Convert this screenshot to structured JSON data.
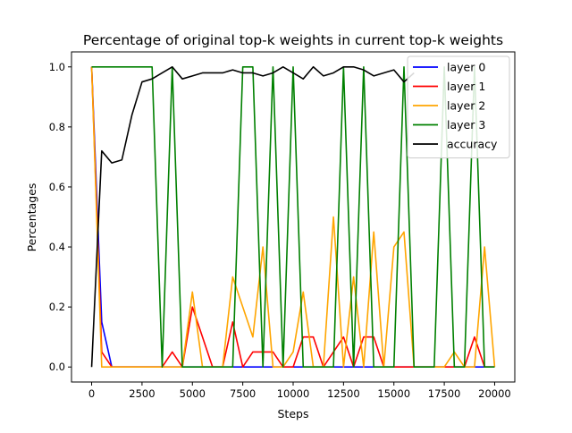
{
  "chart_data": {
    "type": "line",
    "title": "Percentage of original top-k weights in current top-k weights",
    "xlabel": "Steps",
    "ylabel": "Percentages",
    "xlim": [
      -1000,
      21000
    ],
    "ylim": [
      -0.05,
      1.05
    ],
    "xticks": [
      0,
      2500,
      5000,
      7500,
      10000,
      12500,
      15000,
      17500,
      20000
    ],
    "xtick_labels": [
      "0",
      "2500",
      "5000",
      "7500",
      "10000",
      "12500",
      "15000",
      "17500",
      "20000"
    ],
    "yticks": [
      0.0,
      0.2,
      0.4,
      0.6,
      0.8,
      1.0
    ],
    "ytick_labels": [
      "0.0",
      "0.2",
      "0.4",
      "0.6",
      "0.8",
      "1.0"
    ],
    "grid": false,
    "legend_position": "top-right",
    "series": [
      {
        "name": "layer 0",
        "color": "#0000ff",
        "x": [
          0,
          500,
          1000,
          1500,
          2000,
          2500,
          3000,
          3500,
          4000,
          4500,
          5000,
          5500,
          6000,
          6500,
          7000,
          7500,
          8000,
          8500,
          9000,
          9500,
          10000,
          10500,
          11000,
          11500,
          12000,
          12500,
          13000,
          13500,
          14000,
          14500,
          15000,
          15500,
          16000,
          16500,
          17000,
          17500,
          18000,
          18500,
          19000,
          19500,
          20000
        ],
        "y": [
          1.0,
          0.15,
          0,
          0,
          0,
          0,
          0,
          0,
          0,
          0,
          0,
          0,
          0,
          0,
          0,
          0,
          0,
          0,
          0,
          0,
          0,
          0,
          0,
          0,
          0,
          0,
          0,
          0,
          0,
          0,
          0,
          0,
          0,
          0,
          0,
          0,
          0,
          0,
          0,
          0,
          0
        ]
      },
      {
        "name": "layer 1",
        "color": "#ff0000",
        "x": [
          0,
          500,
          1000,
          1500,
          2000,
          2500,
          3000,
          3500,
          4000,
          4500,
          5000,
          5500,
          6000,
          6500,
          7000,
          7500,
          8000,
          8500,
          9000,
          9500,
          10000,
          10500,
          11000,
          11500,
          12000,
          12500,
          13000,
          13500,
          14000,
          14500,
          15000,
          15500,
          16000,
          16500,
          17000,
          17500,
          18000,
          18500,
          19000,
          19500,
          20000
        ],
        "y": [
          1.0,
          0.05,
          0,
          0,
          0,
          0,
          0,
          0,
          0.05,
          0,
          0.2,
          0.1,
          0,
          0,
          0.15,
          0,
          0.05,
          0.05,
          0.05,
          0,
          0,
          0.1,
          0.1,
          0,
          0.05,
          0.1,
          0,
          0.1,
          0.1,
          0,
          0,
          0,
          0,
          0,
          0,
          0,
          0,
          0,
          0.1,
          0,
          0
        ]
      },
      {
        "name": "layer 2",
        "color": "#ffa500",
        "x": [
          0,
          500,
          1000,
          1500,
          2000,
          2500,
          3000,
          3500,
          4000,
          4500,
          5000,
          5500,
          6000,
          6500,
          7000,
          7500,
          8000,
          8500,
          9000,
          9500,
          10000,
          10500,
          11000,
          11500,
          12000,
          12500,
          13000,
          13500,
          14000,
          14500,
          15000,
          15500,
          16000,
          16500,
          17000,
          17500,
          18000,
          18500,
          19000,
          19500,
          20000
        ],
        "y": [
          1.0,
          0,
          0,
          0,
          0,
          0,
          0,
          0,
          0,
          0,
          0.25,
          0,
          0,
          0,
          0.3,
          0.2,
          0.1,
          0.4,
          0,
          0,
          0.05,
          0.25,
          0,
          0,
          0.5,
          0,
          0.3,
          0,
          0.45,
          0,
          0.4,
          0.45,
          0,
          0,
          0,
          0,
          0.05,
          0,
          0,
          0.4,
          0
        ]
      },
      {
        "name": "layer 3",
        "color": "#008000",
        "x": [
          0,
          500,
          1000,
          1500,
          2000,
          2500,
          3000,
          3500,
          4000,
          4500,
          5000,
          5500,
          6000,
          6500,
          7000,
          7500,
          8000,
          8500,
          9000,
          9500,
          10000,
          10500,
          11000,
          11500,
          12000,
          12500,
          13000,
          13500,
          14000,
          14500,
          15000,
          15500,
          16000,
          16500,
          17000,
          17500,
          18000,
          18500,
          19000,
          19500,
          20000
        ],
        "y": [
          1.0,
          1.0,
          1.0,
          1.0,
          1.0,
          1.0,
          1.0,
          0,
          1.0,
          0,
          0,
          0,
          0,
          0,
          0,
          1.0,
          1.0,
          0,
          1.0,
          0,
          1.0,
          0,
          0,
          0,
          0,
          1.0,
          0,
          1.0,
          0,
          0,
          0,
          1.0,
          0,
          0,
          0,
          1.0,
          0,
          0,
          1.0,
          0,
          0
        ]
      },
      {
        "name": "accuracy",
        "color": "#000000",
        "x": [
          0,
          500,
          1000,
          1500,
          2000,
          2500,
          3000,
          3500,
          4000,
          4500,
          5000,
          5500,
          6000,
          6500,
          7000,
          7500,
          8000,
          8500,
          9000,
          9500,
          10000,
          10500,
          11000,
          11500,
          12000,
          12500,
          13000,
          13500,
          14000,
          14500,
          15000,
          15500,
          16000
        ],
        "y": [
          0.0,
          0.72,
          0.68,
          0.69,
          0.84,
          0.95,
          0.96,
          0.98,
          1.0,
          0.96,
          0.97,
          0.98,
          0.98,
          0.98,
          0.99,
          0.98,
          0.98,
          0.97,
          0.98,
          1.0,
          0.98,
          0.96,
          1.0,
          0.97,
          0.98,
          1.0,
          1.0,
          0.99,
          0.97,
          0.98,
          0.99,
          0.95,
          0.98
        ]
      }
    ]
  }
}
